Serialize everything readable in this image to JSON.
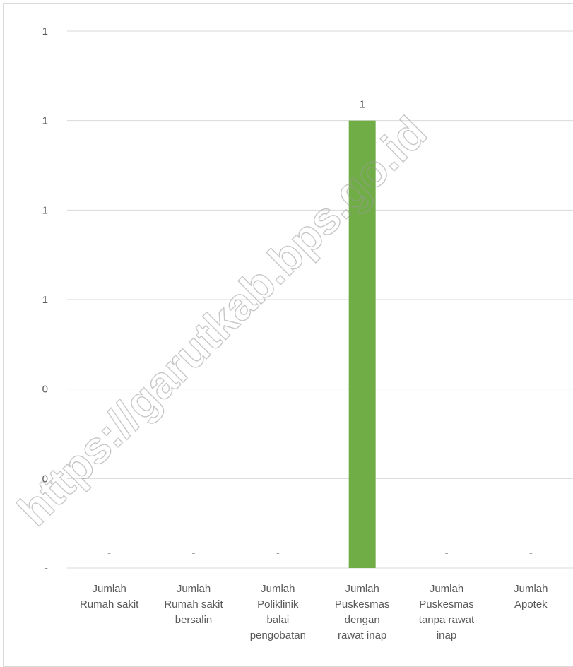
{
  "chart_data": {
    "type": "bar",
    "categories": [
      [
        "Jumlah",
        "Rumah sakit"
      ],
      [
        "Jumlah",
        "Rumah sakit",
        "bersalin"
      ],
      [
        "Jumlah",
        "Poliklinik",
        "balai",
        "pengobatan"
      ],
      [
        "Jumlah",
        "Puskesmas",
        "dengan",
        "rawat inap"
      ],
      [
        "Jumlah",
        "Puskesmas",
        "tanpa rawat",
        "inap"
      ],
      [
        "Jumlah",
        "Apotek"
      ]
    ],
    "values": [
      0,
      0,
      0,
      1,
      0,
      0
    ],
    "data_labels": [
      "-",
      "-",
      "-",
      "1",
      "-",
      "-"
    ],
    "y_tick_labels": [
      "-",
      "0",
      "0",
      "1",
      "1",
      "1",
      "1"
    ],
    "ylim": [
      0,
      1.2
    ],
    "grid": true,
    "bar_color": "#70ad47",
    "title": "",
    "xlabel": "",
    "ylabel": ""
  },
  "watermark": "https://garutkab.bps.go.id"
}
